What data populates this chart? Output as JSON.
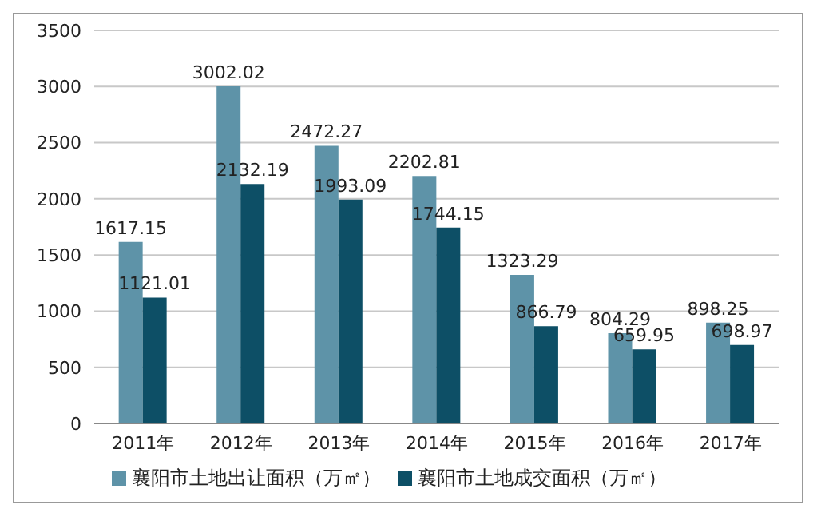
{
  "chart_data": {
    "type": "bar",
    "categories": [
      "2011年",
      "2012年",
      "2013年",
      "2014年",
      "2015年",
      "2016年",
      "2017年"
    ],
    "series": [
      {
        "name": "襄阳市土地出让面积（万㎡）",
        "color": "#5e93a8",
        "values": [
          1617.15,
          3002.02,
          2472.27,
          2202.81,
          1323.29,
          804.29,
          898.25
        ]
      },
      {
        "name": "襄阳市土地成交面积（万㎡）",
        "color": "#0d4f66",
        "values": [
          1121.01,
          2132.19,
          1993.09,
          1744.15,
          866.79,
          659.95,
          698.97
        ]
      }
    ],
    "ylim": [
      0,
      3500
    ],
    "yticks": [
      0,
      500,
      1000,
      1500,
      2000,
      2500,
      3000,
      3500
    ],
    "grid": "y",
    "legend": "bottom",
    "data_labels": true
  }
}
